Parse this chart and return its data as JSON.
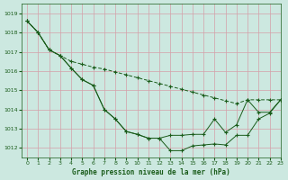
{
  "bg_color": "#cce8e0",
  "grid_color": "#d4a0a8",
  "line_color": "#1a5c1a",
  "xlabel": "Graphe pression niveau de la mer (hPa)",
  "ylim": [
    1011.5,
    1019.5
  ],
  "xlim": [
    -0.5,
    23
  ],
  "yticks": [
    1012,
    1013,
    1014,
    1015,
    1016,
    1017,
    1018,
    1019
  ],
  "xticks": [
    0,
    1,
    2,
    3,
    4,
    5,
    6,
    7,
    8,
    9,
    10,
    11,
    12,
    13,
    14,
    15,
    16,
    17,
    18,
    19,
    20,
    21,
    22,
    23
  ],
  "line1_x": [
    0,
    1,
    2,
    3,
    4,
    5,
    6,
    7,
    8,
    9,
    10,
    11,
    12,
    13,
    14,
    15,
    16,
    17,
    18,
    19,
    20,
    21,
    22,
    23
  ],
  "line1_y": [
    1018.6,
    1018.0,
    1017.1,
    1016.8,
    1016.15,
    1015.55,
    1015.25,
    1014.0,
    1013.5,
    1012.85,
    1012.7,
    1012.5,
    1012.5,
    1011.85,
    1011.85,
    1012.1,
    1012.15,
    1012.2,
    1012.15,
    1012.65,
    1012.65,
    1013.5,
    1013.8,
    1014.5
  ],
  "line2_x": [
    0,
    1,
    2,
    3,
    4,
    5,
    6,
    7,
    8,
    9,
    10,
    11,
    12,
    13,
    14,
    15,
    16,
    17,
    18,
    19,
    20,
    21,
    22,
    23
  ],
  "line2_y": [
    1018.6,
    1018.0,
    1017.1,
    1016.8,
    1016.5,
    1016.35,
    1016.2,
    1016.1,
    1015.95,
    1015.8,
    1015.65,
    1015.5,
    1015.35,
    1015.2,
    1015.05,
    1014.9,
    1014.75,
    1014.6,
    1014.45,
    1014.3,
    1014.5,
    1014.5,
    1014.5,
    1014.5
  ],
  "line3_x": [
    0,
    1,
    2,
    3,
    4,
    5,
    6,
    7,
    8,
    9,
    10,
    11,
    12,
    13,
    14,
    15,
    16,
    17,
    18,
    19,
    20,
    21,
    22,
    23
  ],
  "line3_y": [
    1018.6,
    1018.0,
    1017.1,
    1016.8,
    1016.15,
    1015.55,
    1015.25,
    1014.0,
    1013.5,
    1012.85,
    1012.7,
    1012.5,
    1012.5,
    1012.65,
    1012.65,
    1012.7,
    1012.7,
    1013.5,
    1012.8,
    1013.2,
    1014.5,
    1013.85,
    1013.85,
    1014.5
  ]
}
